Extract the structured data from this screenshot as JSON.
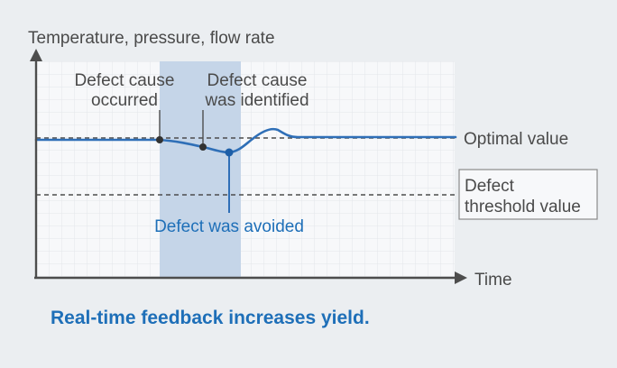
{
  "diagram": {
    "y_axis_label": "Temperature, pressure, flow rate",
    "x_axis_label": "Time",
    "annotations": {
      "cause_occurred": [
        "Defect cause",
        "occurred"
      ],
      "cause_identified": [
        "Defect cause",
        "was identified"
      ],
      "avoided": "Defect was avoided"
    },
    "lines": {
      "optimal": "Optimal value",
      "threshold": [
        "Defect",
        "threshold value"
      ]
    },
    "caption": "Real-time feedback increases yield.",
    "colors": {
      "signal": "#2f6fb7",
      "highlight_band": "#c5d5e8",
      "grid_background": "#f7f8fa",
      "axis": "#4d4d4d",
      "caption": "#1e6fb8"
    }
  }
}
